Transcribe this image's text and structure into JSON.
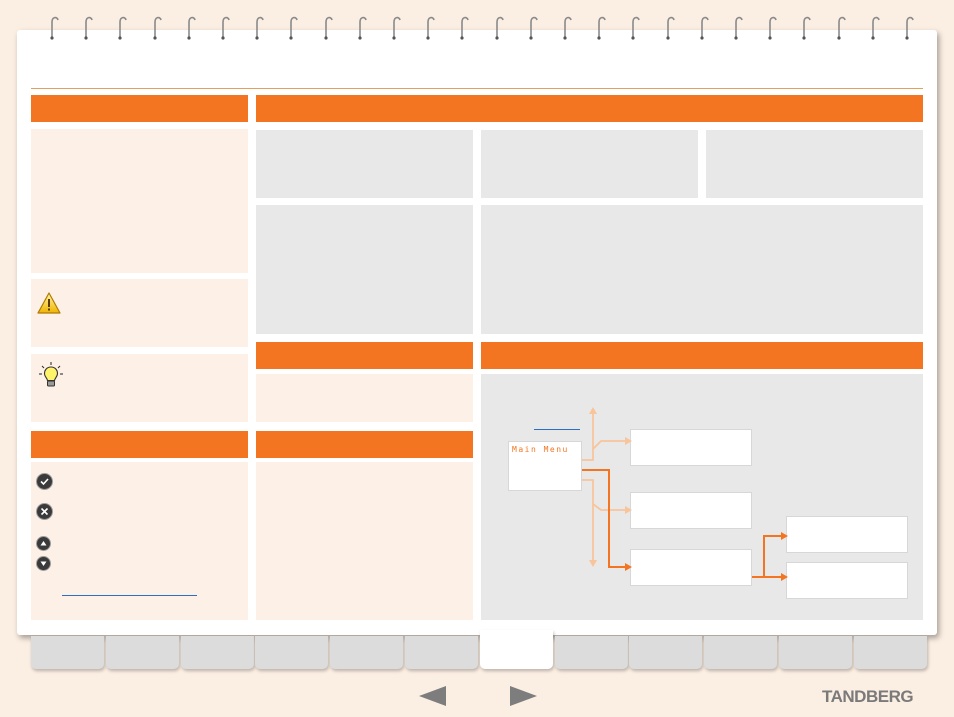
{
  "brand": {
    "logo_text": "TANDBERG",
    "accent_color": "#f47521"
  },
  "menu_diagram": {
    "main_menu_label": "Main Menu"
  },
  "icons": [
    "warning-icon",
    "lightbulb-icon",
    "ok-key-icon",
    "cancel-key-icon",
    "arrow-up-key-icon",
    "arrow-down-key-icon",
    "previous-page-arrow-icon",
    "next-page-arrow-icon"
  ],
  "tabs": {
    "count": 12,
    "active_index": 6
  }
}
